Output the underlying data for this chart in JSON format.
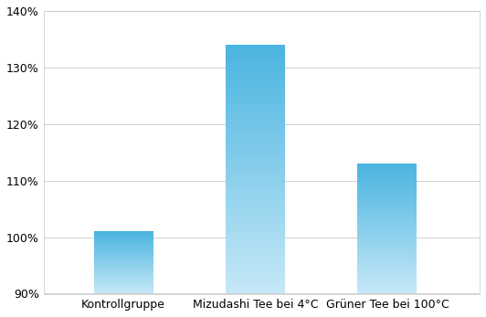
{
  "categories": [
    "Kontrollgruppe",
    "Mizudashi Tee bei 4°C",
    "Grüner Tee bei 100°C"
  ],
  "values": [
    101,
    134,
    113
  ],
  "ylim": [
    90,
    140
  ],
  "yticks": [
    90,
    100,
    110,
    120,
    130,
    140
  ],
  "bar_color_top": "#4ab4e0",
  "bar_color_bottom": "#c5e8f7",
  "background_color": "#ffffff",
  "plot_bg_color": "#ffffff",
  "grid_color": "#d0d0d0",
  "border_color": "#c8c8c8",
  "tick_label_fontsize": 9,
  "bar_width": 0.45
}
